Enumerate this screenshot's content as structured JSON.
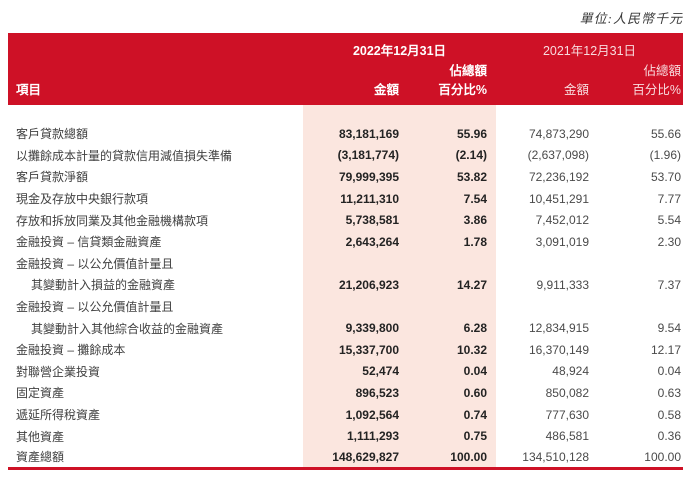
{
  "page": {
    "unit_note": "單位:人民幣千元"
  },
  "colors": {
    "header_red": "#CE1126",
    "highlight_pink": "#FBE6DF"
  },
  "table": {
    "header": {
      "item_label": "項目",
      "col_2022": {
        "date": "2022年12月31日",
        "amount": "金額",
        "pct_line1": "佔總額",
        "pct_line2": "百分比%"
      },
      "col_2021": {
        "date": "2021年12月31日",
        "amount": "金額",
        "pct_line1": "佔總額",
        "pct_line2": "百分比%"
      }
    },
    "rows": [
      {
        "label": "客戶貸款總額",
        "indent": false,
        "a2022": "83,181,169",
        "p2022": "55.96",
        "a2021": "74,873,290",
        "p2021": "55.66"
      },
      {
        "label": "以攤餘成本計量的貸款信用減值損失準備",
        "indent": false,
        "a2022": "(3,181,774)",
        "p2022": "(2.14)",
        "a2021": "(2,637,098)",
        "p2021": "(1.96)"
      },
      {
        "label": "客戶貸款淨額",
        "indent": false,
        "a2022": "79,999,395",
        "p2022": "53.82",
        "a2021": "72,236,192",
        "p2021": "53.70"
      },
      {
        "label": "現金及存放中央銀行款項",
        "indent": false,
        "a2022": "11,211,310",
        "p2022": "7.54",
        "a2021": "10,451,291",
        "p2021": "7.77"
      },
      {
        "label": "存放和拆放同業及其他金融機構款項",
        "indent": false,
        "a2022": "5,738,581",
        "p2022": "3.86",
        "a2021": "7,452,012",
        "p2021": "5.54"
      },
      {
        "label": "金融投資 – 信貸類金融資產",
        "indent": false,
        "a2022": "2,643,264",
        "p2022": "1.78",
        "a2021": "3,091,019",
        "p2021": "2.30"
      },
      {
        "label": "金融投資 – 以公允價值計量且",
        "indent": false,
        "a2022": "",
        "p2022": "",
        "a2021": "",
        "p2021": ""
      },
      {
        "label": "其變動計入損益的金融資產",
        "indent": true,
        "a2022": "21,206,923",
        "p2022": "14.27",
        "a2021": "9,911,333",
        "p2021": "7.37"
      },
      {
        "label": "金融投資 – 以公允價值計量且",
        "indent": false,
        "a2022": "",
        "p2022": "",
        "a2021": "",
        "p2021": ""
      },
      {
        "label": "其變動計入其他綜合收益的金融資產",
        "indent": true,
        "a2022": "9,339,800",
        "p2022": "6.28",
        "a2021": "12,834,915",
        "p2021": "9.54"
      },
      {
        "label": "金融投資 – 攤餘成本",
        "indent": false,
        "a2022": "15,337,700",
        "p2022": "10.32",
        "a2021": "16,370,149",
        "p2021": "12.17"
      },
      {
        "label": "對聯營企業投資",
        "indent": false,
        "a2022": "52,474",
        "p2022": "0.04",
        "a2021": "48,924",
        "p2021": "0.04"
      },
      {
        "label": "固定資產",
        "indent": false,
        "a2022": "896,523",
        "p2022": "0.60",
        "a2021": "850,082",
        "p2021": "0.63"
      },
      {
        "label": "遞延所得稅資產",
        "indent": false,
        "a2022": "1,092,564",
        "p2022": "0.74",
        "a2021": "777,630",
        "p2021": "0.58"
      },
      {
        "label": "其他資產",
        "indent": false,
        "a2022": "1,111,293",
        "p2022": "0.75",
        "a2021": "486,581",
        "p2021": "0.36"
      },
      {
        "label": "資產總額",
        "indent": false,
        "a2022": "148,629,827",
        "p2022": "100.00",
        "a2021": "134,510,128",
        "p2021": "100.00"
      }
    ]
  }
}
